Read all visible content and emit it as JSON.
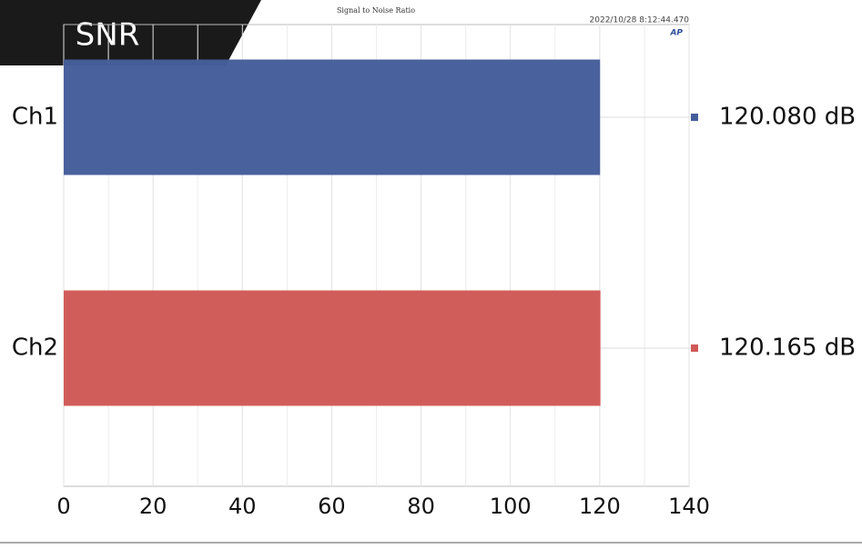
{
  "badge": "SNR",
  "chart_data": {
    "type": "barh",
    "title": "Signal to Noise Ratio",
    "timestamp": "2022/10/28 8:12:44.470",
    "logo": "AP",
    "categories": [
      "Ch1",
      "Ch2"
    ],
    "values": [
      120.08,
      120.165
    ],
    "value_labels": [
      "120.080 dB",
      "120.165 dB"
    ],
    "colors": [
      "#455e9a",
      "#d05a57"
    ],
    "xlim": [
      0,
      140
    ],
    "xticks": [
      0,
      20,
      40,
      60,
      80,
      100,
      120,
      140
    ],
    "x_minor_ticks": [
      10,
      30,
      50,
      70,
      90,
      110,
      130
    ],
    "grid": true
  }
}
